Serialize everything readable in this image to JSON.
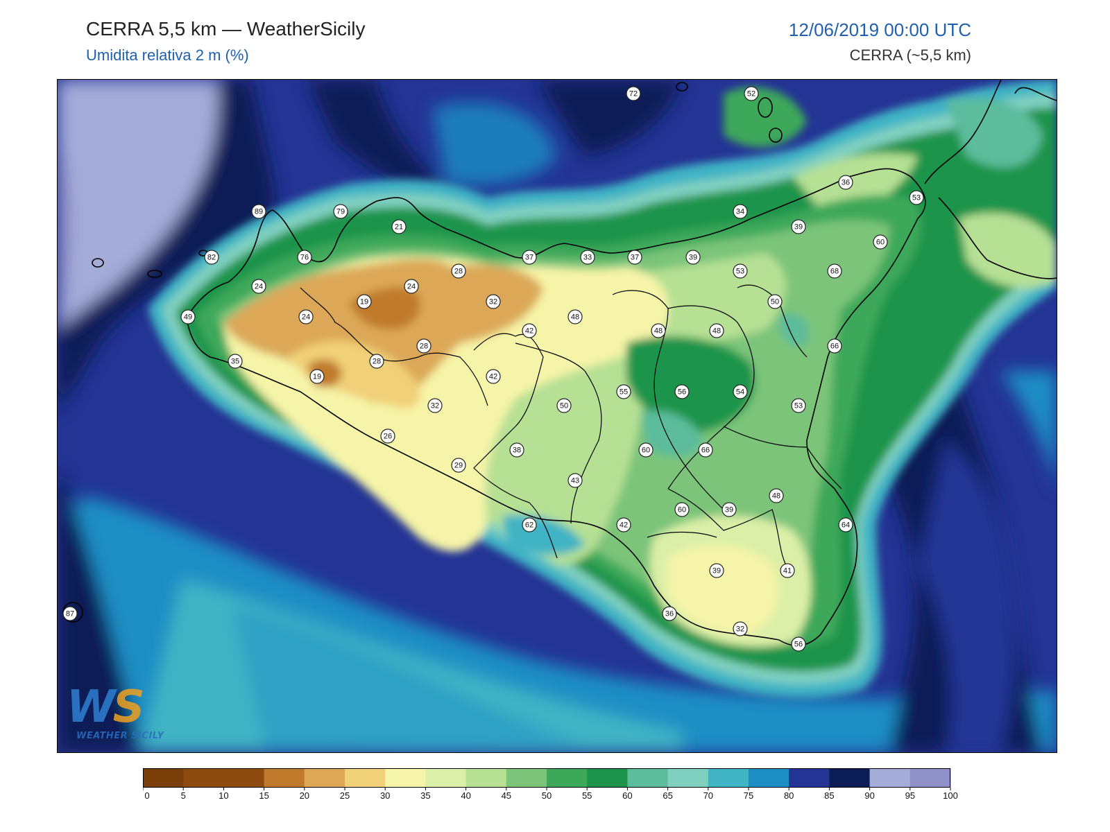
{
  "header": {
    "title": "CERRA 5,5 km — WeatherSicily",
    "subtitle": "Umidita relativa 2 m (%)",
    "datetime": "12/06/2019 00:00 UTC",
    "model": "CERRA (~5,5 km)"
  },
  "logo": {
    "main": "WS",
    "sub": "WEATHER SICILY"
  },
  "colorbar": {
    "ticks": [
      "0",
      "5",
      "10",
      "15",
      "20",
      "25",
      "30",
      "35",
      "40",
      "45",
      "50",
      "55",
      "60",
      "65",
      "70",
      "75",
      "80",
      "85",
      "90",
      "95",
      "100"
    ],
    "colors": [
      "#7a3e08",
      "#8c4a0e",
      "#8c4a0e",
      "#c07a2c",
      "#dca858",
      "#f0d078",
      "#f6f4a8",
      "#dcefa8",
      "#b6e094",
      "#7cc47a",
      "#3ea85a",
      "#1c944c",
      "#5cbc9c",
      "#80d0c0",
      "#40b4c4",
      "#1c8ec4",
      "#243494",
      "#0c1c56",
      "#a4acd8",
      "#9090c8"
    ]
  },
  "stations": [
    {
      "v": "72"
    },
    {
      "v": "52"
    },
    {
      "v": "36"
    },
    {
      "v": "53"
    },
    {
      "v": "89"
    },
    {
      "v": "79"
    },
    {
      "v": "21"
    },
    {
      "v": "34"
    },
    {
      "v": "39"
    },
    {
      "v": "60"
    },
    {
      "v": "82"
    },
    {
      "v": "76"
    },
    {
      "v": "37"
    },
    {
      "v": "33"
    },
    {
      "v": "37"
    },
    {
      "v": "39"
    },
    {
      "v": "53"
    },
    {
      "v": "68"
    },
    {
      "v": "28"
    },
    {
      "v": "24"
    },
    {
      "v": "24"
    },
    {
      "v": "19"
    },
    {
      "v": "32"
    },
    {
      "v": "50"
    },
    {
      "v": "49"
    },
    {
      "v": "24"
    },
    {
      "v": "42"
    },
    {
      "v": "48"
    },
    {
      "v": "48"
    },
    {
      "v": "48"
    },
    {
      "v": "66"
    },
    {
      "v": "28"
    },
    {
      "v": "35"
    },
    {
      "v": "28"
    },
    {
      "v": "19"
    },
    {
      "v": "42"
    },
    {
      "v": "55"
    },
    {
      "v": "56"
    },
    {
      "v": "54"
    },
    {
      "v": "32"
    },
    {
      "v": "50"
    },
    {
      "v": "53"
    },
    {
      "v": "26"
    },
    {
      "v": "38"
    },
    {
      "v": "60"
    },
    {
      "v": "66"
    },
    {
      "v": "29"
    },
    {
      "v": "43"
    },
    {
      "v": "48"
    },
    {
      "v": "60"
    },
    {
      "v": "39"
    },
    {
      "v": "62"
    },
    {
      "v": "42"
    },
    {
      "v": "64"
    },
    {
      "v": "39"
    },
    {
      "v": "41"
    },
    {
      "v": "87"
    },
    {
      "v": "36"
    },
    {
      "v": "32"
    },
    {
      "v": "56"
    }
  ]
}
